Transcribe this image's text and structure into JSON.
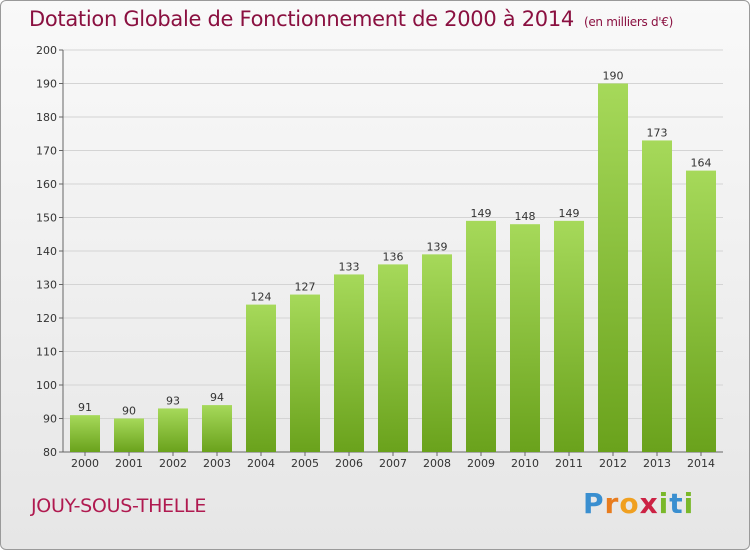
{
  "title": "Dotation Globale de Fonctionnement de 2000 à 2014",
  "subtitle": "(en milliers d'€)",
  "commune": "JOUY-SOUS-THELLE",
  "logo": "Proxiti",
  "colors": {
    "title": "#8a1040",
    "bar_light": "#a6d95a",
    "bar_dark": "#6aa21c",
    "grid": "#d0d0d0"
  },
  "chart_data": {
    "type": "bar",
    "title": "Dotation Globale de Fonctionnement de 2000 à 2014",
    "subtitle": "(en milliers d'€)",
    "categories": [
      "2000",
      "2001",
      "2002",
      "2003",
      "2004",
      "2005",
      "2006",
      "2007",
      "2008",
      "2009",
      "2010",
      "2011",
      "2012",
      "2013",
      "2014"
    ],
    "values": [
      91,
      90,
      93,
      94,
      124,
      127,
      133,
      136,
      139,
      149,
      148,
      149,
      190,
      173,
      164
    ],
    "ylim": [
      80,
      200
    ],
    "yticks": [
      80,
      90,
      100,
      110,
      120,
      130,
      140,
      150,
      160,
      170,
      180,
      190,
      200
    ],
    "grid": true,
    "data_labels": true
  }
}
